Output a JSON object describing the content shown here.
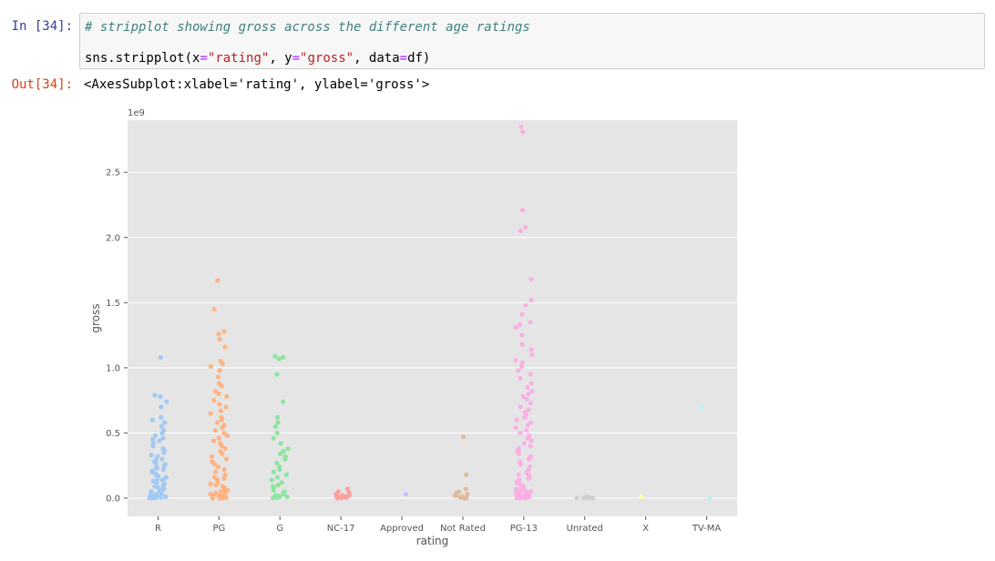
{
  "cell": {
    "in_prompt": "In [34]:",
    "out_prompt": "Out[34]:",
    "comment": "# stripplot showing gross across the different age ratings",
    "code": {
      "prefix": "sns.stripplot(x",
      "eq1": "=",
      "xval": "\"rating\"",
      "mid1": ", y",
      "eq2": "=",
      "yval": "\"gross\"",
      "mid2": ", data",
      "eq3": "=",
      "suffix": "df)"
    },
    "output": "<AxesSubplot:xlabel='rating', ylabel='gross'>"
  },
  "chart_data": {
    "type": "scatter",
    "kind": "stripplot",
    "xlabel": "rating",
    "ylabel": "gross",
    "y_multiplier_label": "1e9",
    "ylim": [
      -0.14,
      2.9
    ],
    "yticks": [
      0.0,
      0.5,
      1.0,
      1.5,
      2.0,
      2.5
    ],
    "ytick_labels": [
      "0.0",
      "0.5",
      "1.0",
      "1.5",
      "2.0",
      "2.5"
    ],
    "grid": true,
    "background": "#e5e5e5",
    "categories": [
      "R",
      "PG",
      "G",
      "NC-17",
      "Approved",
      "Not Rated",
      "PG-13",
      "Unrated",
      "X",
      "TV-MA"
    ],
    "colors": [
      "#a1c9f4",
      "#ffb482",
      "#8de5a1",
      "#ff9f9b",
      "#d0bbff",
      "#debb9b",
      "#fab0e4",
      "#cfcfcf",
      "#fffea3",
      "#b9f2f0"
    ],
    "points": [
      [
        1.08,
        0.79,
        0.78,
        0.74,
        0.7,
        0.62,
        0.6,
        0.58,
        0.55,
        0.52,
        0.5,
        0.48,
        0.46,
        0.45,
        0.44,
        0.42,
        0.4,
        0.38,
        0.36,
        0.35,
        0.33,
        0.32,
        0.3,
        0.29,
        0.28,
        0.27,
        0.26,
        0.25,
        0.24,
        0.23,
        0.22,
        0.21,
        0.2,
        0.19,
        0.18,
        0.17,
        0.16,
        0.15,
        0.14,
        0.13,
        0.12,
        0.11,
        0.1,
        0.09,
        0.08,
        0.07,
        0.06,
        0.05,
        0.05,
        0.04,
        0.04,
        0.03,
        0.03,
        0.02,
        0.02,
        0.02,
        0.01,
        0.01,
        0.01,
        0.01,
        0.005,
        0.005,
        0.005,
        0.0,
        0.0,
        0.0
      ],
      [
        1.67,
        1.45,
        1.28,
        1.26,
        1.22,
        1.16,
        1.05,
        1.03,
        1.01,
        0.98,
        0.93,
        0.88,
        0.86,
        0.82,
        0.8,
        0.78,
        0.75,
        0.72,
        0.7,
        0.67,
        0.65,
        0.62,
        0.6,
        0.58,
        0.56,
        0.54,
        0.52,
        0.5,
        0.48,
        0.46,
        0.44,
        0.42,
        0.4,
        0.38,
        0.36,
        0.34,
        0.32,
        0.3,
        0.28,
        0.26,
        0.24,
        0.22,
        0.2,
        0.18,
        0.16,
        0.15,
        0.14,
        0.12,
        0.11,
        0.1,
        0.09,
        0.08,
        0.07,
        0.06,
        0.05,
        0.04,
        0.04,
        0.03,
        0.03,
        0.02,
        0.02,
        0.01,
        0.01,
        0.01,
        0.005,
        0.005,
        0.0,
        0.0,
        0.0
      ],
      [
        1.09,
        1.08,
        1.07,
        0.95,
        0.74,
        0.62,
        0.58,
        0.55,
        0.5,
        0.46,
        0.42,
        0.38,
        0.36,
        0.34,
        0.32,
        0.3,
        0.27,
        0.24,
        0.22,
        0.2,
        0.18,
        0.16,
        0.14,
        0.12,
        0.1,
        0.09,
        0.08,
        0.07,
        0.06,
        0.05,
        0.04,
        0.03,
        0.02,
        0.02,
        0.01,
        0.01,
        0.005,
        0.0
      ],
      [
        0.07,
        0.05,
        0.04,
        0.03,
        0.03,
        0.02,
        0.02,
        0.01,
        0.01,
        0.005,
        0.005,
        0.0,
        0.0
      ],
      [
        0.03
      ],
      [
        0.47,
        0.18,
        0.07,
        0.05,
        0.04,
        0.03,
        0.02,
        0.02,
        0.01,
        0.01,
        0.005,
        0.0,
        0.0,
        0.0
      ],
      [
        2.85,
        2.81,
        2.21,
        2.08,
        2.05,
        1.68,
        1.52,
        1.48,
        1.41,
        1.35,
        1.33,
        1.31,
        1.25,
        1.18,
        1.14,
        1.1,
        1.06,
        1.04,
        1.01,
        0.98,
        0.95,
        0.92,
        0.88,
        0.85,
        0.82,
        0.8,
        0.78,
        0.76,
        0.73,
        0.7,
        0.68,
        0.66,
        0.64,
        0.62,
        0.6,
        0.58,
        0.56,
        0.54,
        0.52,
        0.5,
        0.48,
        0.46,
        0.44,
        0.42,
        0.4,
        0.38,
        0.36,
        0.34,
        0.32,
        0.3,
        0.28,
        0.26,
        0.24,
        0.22,
        0.2,
        0.19,
        0.18,
        0.17,
        0.16,
        0.15,
        0.14,
        0.13,
        0.12,
        0.11,
        0.1,
        0.09,
        0.08,
        0.07,
        0.06,
        0.05,
        0.05,
        0.04,
        0.04,
        0.03,
        0.03,
        0.02,
        0.02,
        0.01,
        0.01,
        0.01,
        0.005,
        0.005,
        0.0,
        0.0,
        0.0
      ],
      [
        0.01,
        0.005,
        0.005,
        0.0,
        0.0,
        0.0,
        0.0,
        0.0
      ],
      [
        0.01
      ],
      [
        0.7,
        0.0
      ]
    ]
  }
}
